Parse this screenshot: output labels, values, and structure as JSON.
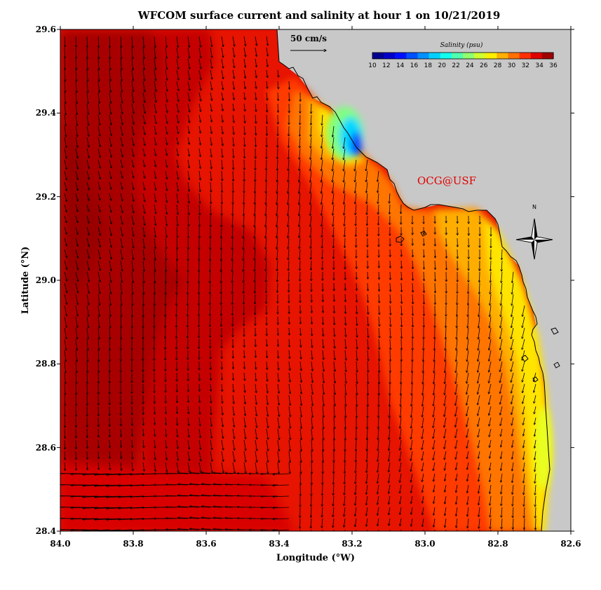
{
  "title": "WFCOM surface current and salinity at hour 1 on 10/21/2019",
  "credit": "OCG@USF",
  "map": {
    "lon_range_W": [
      84.0,
      82.6
    ],
    "lat_range_N": [
      28.4,
      29.6
    ],
    "x_label": "Longitude (°W)",
    "y_label": "Latitude (°N)",
    "x_ticks": [
      "84.0",
      "83.8",
      "83.6",
      "83.4",
      "83.2",
      "83.0",
      "82.8",
      "82.6"
    ],
    "y_ticks": [
      "29.6",
      "29.4",
      "29.2",
      "29.0",
      "28.8",
      "28.6",
      "28.4"
    ],
    "land_color": "#c8c8c8",
    "coast_color": "#000000",
    "vector_color": "#000000"
  },
  "scale_arrow": {
    "label": "50 cm/s",
    "speed_cm_s": 50
  },
  "compass": {
    "label": "N"
  },
  "colorbar": {
    "title": "Salinity (psu)",
    "range": [
      10,
      36
    ],
    "tick_labels": [
      "10",
      "12",
      "14",
      "16",
      "18",
      "20",
      "22",
      "24",
      "26",
      "28",
      "30",
      "32",
      "34",
      "36"
    ],
    "colors": [
      "#00008f",
      "#0000c8",
      "#0010ff",
      "#0050ff",
      "#0090ff",
      "#00d0ff",
      "#10ffef",
      "#50ffaf",
      "#90ff6f",
      "#d0ff2f",
      "#ffef00",
      "#ffb000",
      "#ff7000",
      "#ff3000",
      "#df0000",
      "#9f0000"
    ]
  },
  "salinity_field": {
    "open_gulf_west": 35.5,
    "mid_shelf": 34.0,
    "near_shore_south": 31.0,
    "coastal_band_south": 27.5,
    "coastal_minimum_north": 17.0
  }
}
